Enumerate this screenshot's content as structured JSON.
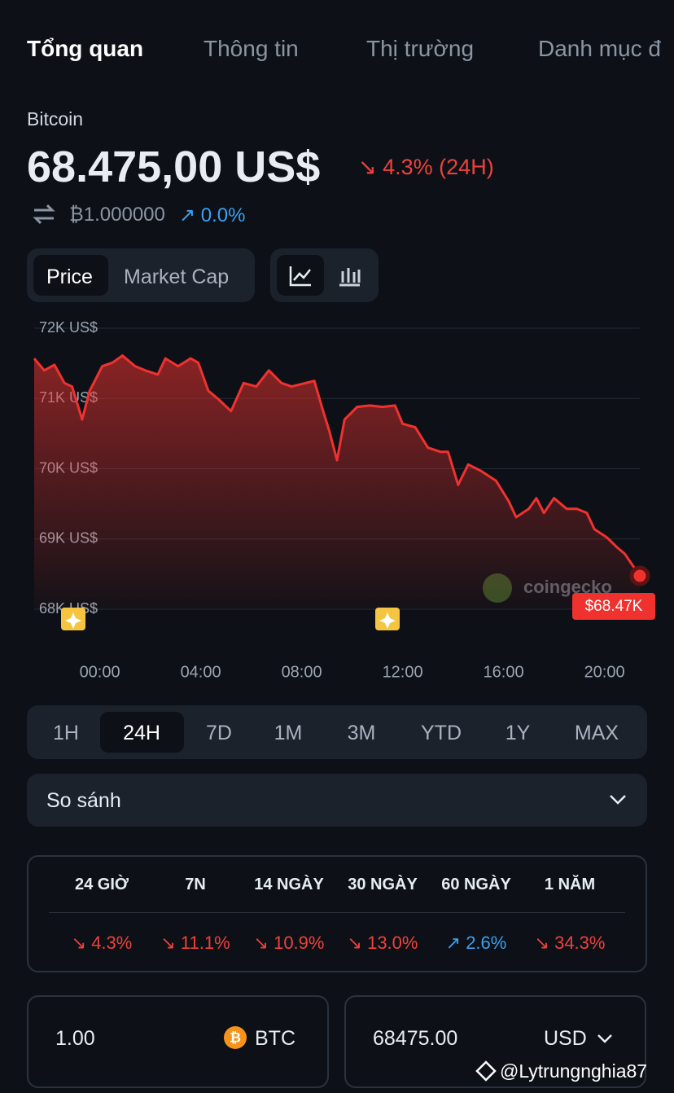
{
  "tabs": [
    "Tổng quan",
    "Thông tin",
    "Thị trường",
    "Danh mục đ"
  ],
  "coin": {
    "name": "Bitcoin",
    "price": "68.475,00 US$",
    "change": "↘ 4.3% (24H)",
    "btc_price": "₿1.000000",
    "btc_change": "↗ 0.0%"
  },
  "chart_toggle": [
    "Price",
    "Market Cap"
  ],
  "chart_data": {
    "type": "line",
    "color": "#f0322f",
    "grid": true,
    "x": [
      -2.6,
      -2.2,
      -1.8,
      -1.4,
      -1.1,
      -0.7,
      -0.4,
      0.1,
      0.5,
      0.9,
      1.4,
      1.8,
      2.3,
      2.6,
      3.1,
      3.6,
      3.9,
      4.3,
      4.7,
      5.2,
      5.7,
      6.2,
      6.7,
      7.2,
      7.6,
      8.5,
      8.8,
      9.1,
      9.4,
      9.7,
      10.2,
      10.7,
      11.2,
      11.7,
      12.0,
      12.5,
      13.0,
      13.5,
      13.8,
      14.2,
      14.6,
      15.1,
      15.7,
      16.2,
      16.5,
      17.0,
      17.3,
      17.6,
      18.0,
      18.5,
      18.9,
      19.3,
      19.6,
      20.1,
      20.5,
      20.8,
      21.4
    ],
    "values": [
      71570,
      71400,
      71480,
      71220,
      71170,
      70700,
      71110,
      71460,
      71510,
      71610,
      71460,
      71400,
      71340,
      71570,
      71460,
      71570,
      71510,
      71110,
      70990,
      70820,
      71220,
      71170,
      71400,
      71220,
      71170,
      71250,
      70880,
      70530,
      70120,
      70700,
      70880,
      70900,
      70880,
      70900,
      70640,
      70590,
      70300,
      70240,
      70240,
      69770,
      70060,
      69970,
      69830,
      69540,
      69310,
      69430,
      69580,
      69370,
      69580,
      69430,
      69430,
      69370,
      69140,
      69020,
      68880,
      68790,
      68475
    ],
    "xlim": [
      -2.6,
      21.4
    ],
    "xticks": [
      {
        "value": 0,
        "label": "00:00"
      },
      {
        "value": 4,
        "label": "04:00"
      },
      {
        "value": 8,
        "label": "08:00"
      },
      {
        "value": 12,
        "label": "12:00"
      },
      {
        "value": 16,
        "label": "16:00"
      },
      {
        "value": 20,
        "label": "20:00"
      }
    ],
    "ylim": [
      68000,
      72000
    ],
    "yticks": [
      {
        "value": 68000,
        "label": "68K US$"
      },
      {
        "value": 69000,
        "label": "69K US$"
      },
      {
        "value": 70000,
        "label": "70K US$"
      },
      {
        "value": 71000,
        "label": "71K US$"
      },
      {
        "value": 72000,
        "label": "72K US$"
      }
    ],
    "price_label": "$68.47K",
    "watermark": "coingecko"
  },
  "ranges": [
    "1H",
    "24H",
    "7D",
    "1M",
    "3M",
    "YTD",
    "1Y",
    "MAX"
  ],
  "compare": "So sánh",
  "performance": {
    "headers": [
      "24 GIỜ",
      "7N",
      "14 NGÀY",
      "30 NGÀY",
      "60 NGÀY",
      "1 NĂM"
    ],
    "values": [
      "↘ 4.3%",
      "↘ 11.1%",
      "↘ 10.9%",
      "↘ 13.0%",
      "↗ 2.6%",
      "↘ 34.3%"
    ]
  },
  "converter": {
    "amount": "1.00",
    "coin": "BTC",
    "result": "68475.00",
    "currency": "USD"
  },
  "credit": "@Lytrungnghia87"
}
